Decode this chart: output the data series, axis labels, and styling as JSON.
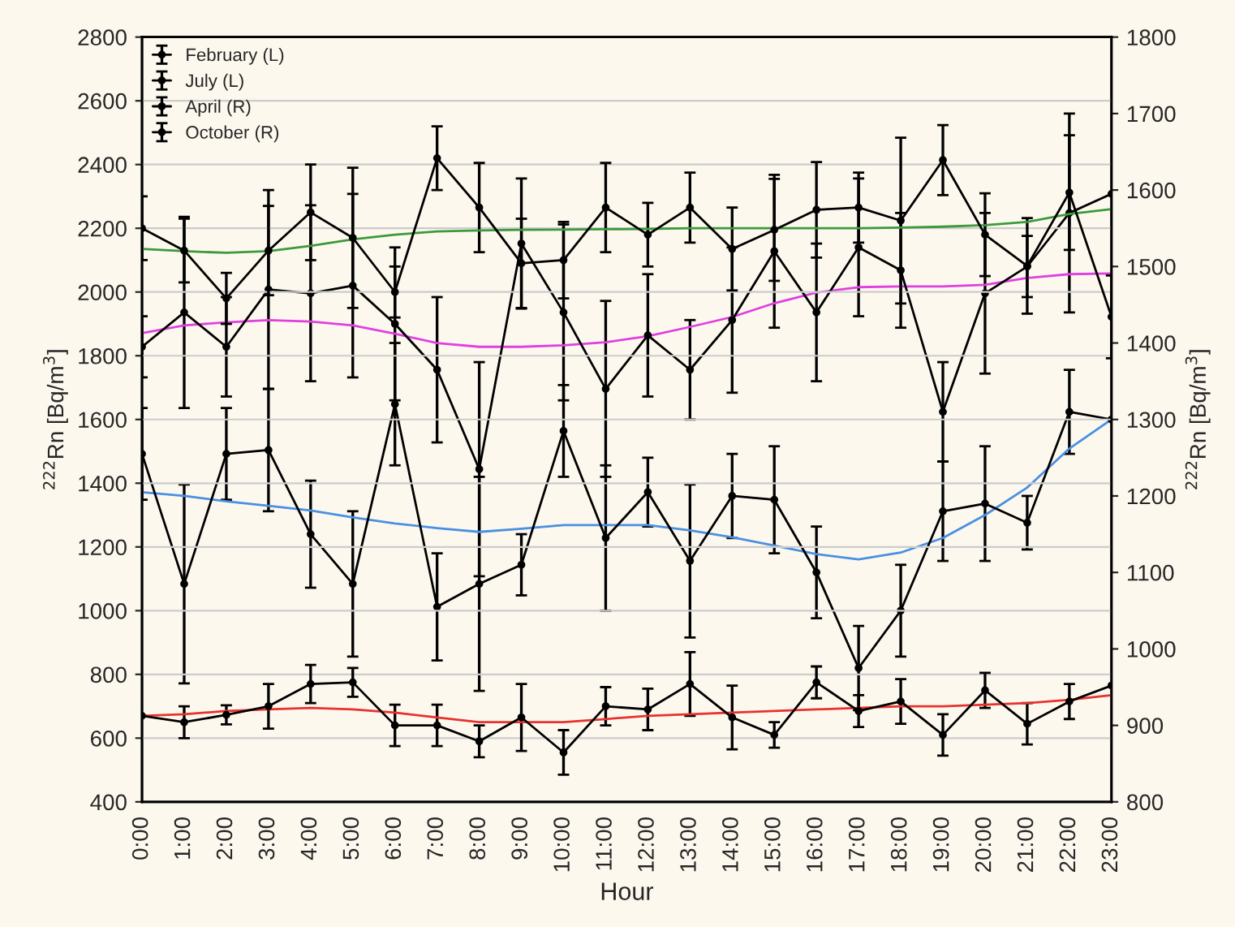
{
  "chart_data": {
    "type": "line",
    "xlabel": "Hour",
    "ylabel": "$^{222}$Rn [Bq/m$^{3}$]",
    "y2label": "$^{222}$Rn [Bq/m$^{3}$]",
    "categories": [
      "0:00",
      "1:00",
      "2:00",
      "3:00",
      "4:00",
      "5:00",
      "6:00",
      "7:00",
      "8:00",
      "9:00",
      "10:00",
      "11:00",
      "12:00",
      "13:00",
      "14:00",
      "15:00",
      "16:00",
      "17:00",
      "18:00",
      "19:00",
      "20:00",
      "21:00",
      "22:00",
      "23:00"
    ],
    "ylim": [
      400,
      2800
    ],
    "yticks": [
      400,
      600,
      800,
      1000,
      1200,
      1400,
      1600,
      1800,
      2000,
      2200,
      2400,
      2600,
      2800
    ],
    "y2lim": [
      800,
      1800
    ],
    "y2ticks": [
      800,
      900,
      1000,
      1100,
      1200,
      1300,
      1400,
      1500,
      1600,
      1700,
      1800
    ],
    "grid": "y",
    "legend": "top left",
    "marker": "circle",
    "line_style": "solid",
    "series": [
      {
        "name": "February (L)",
        "color": "#000000",
        "values": [
          670,
          650,
          673,
          700,
          770,
          775,
          640,
          640,
          590,
          665,
          555,
          700,
          690,
          770,
          665,
          610,
          775,
          685,
          715,
          610,
          750,
          645,
          715,
          765
        ],
        "errors": [
          null,
          50,
          30,
          70,
          60,
          45,
          65,
          65,
          50,
          105,
          70,
          60,
          65,
          100,
          100,
          40,
          50,
          50,
          70,
          65,
          55,
          65,
          55,
          null
        ]
      },
      {
        "name": "July (L)",
        "color": "#000000",
        "values": [
          2200,
          2130,
          1980,
          2130,
          2250,
          2170,
          2000,
          2420,
          2265,
          2090,
          2100,
          2265,
          2180,
          2265,
          2135,
          2195,
          2258,
          2265,
          2224,
          2414,
          2180,
          2082,
          2312,
          1922
        ],
        "errors": [
          100,
          100,
          80,
          140,
          150,
          220,
          80,
          100,
          140,
          140,
          120,
          140,
          100,
          110,
          130,
          160,
          150,
          110,
          260,
          110,
          130,
          150,
          180,
          130
        ]
      },
      {
        "name": "April (R)",
        "color": "#000000",
        "axis": "y2",
        "values": [
          1255,
          1085,
          1255,
          1260,
          1150,
          1085,
          1320,
          1055,
          1085,
          1110,
          1285,
          1145,
          1205,
          1115,
          1200,
          1195,
          1100,
          975,
          1050,
          1180,
          1190,
          1165,
          1310,
          1300
        ],
        "errors": [
          60,
          130,
          60,
          80,
          70,
          95,
          80,
          70,
          140,
          40,
          60,
          95,
          45,
          100,
          55,
          70,
          60,
          55,
          60,
          65,
          75,
          35,
          55,
          null
        ]
      },
      {
        "name": "October (R)",
        "color": "#000000",
        "axis": "y2",
        "values": [
          1395,
          1440,
          1395,
          1470,
          1465,
          1475,
          1425,
          1365,
          1235,
          1530,
          1440,
          1340,
          1410,
          1365,
          1430,
          1520,
          1440,
          1525,
          1495,
          1310,
          1465,
          1500,
          1570,
          1595
        ],
        "errors": [
          40,
          125,
          65,
          130,
          115,
          120,
          100,
          95,
          140,
          85,
          115,
          115,
          80,
          65,
          95,
          100,
          90,
          90,
          75,
          65,
          105,
          40,
          130,
          null
        ]
      },
      {
        "color": "#e8322d",
        "marker": "none",
        "values": [
          670,
          675,
          685,
          690,
          695,
          690,
          680,
          665,
          650,
          650,
          650,
          660,
          670,
          675,
          680,
          685,
          690,
          695,
          700,
          700,
          705,
          710,
          720,
          735
        ]
      },
      {
        "color": "#3c9a3c",
        "marker": "none",
        "values": [
          2135,
          2128,
          2123,
          2128,
          2145,
          2165,
          2180,
          2190,
          2193,
          2195,
          2196,
          2197,
          2198,
          2200,
          2200,
          2200,
          2200,
          2200,
          2202,
          2205,
          2210,
          2220,
          2245,
          2260
        ]
      },
      {
        "color": "#4a90e2",
        "marker": "none",
        "axis": "y2",
        "values": [
          1205,
          1200,
          1193,
          1187,
          1181,
          1172,
          1164,
          1158,
          1153,
          1157,
          1162,
          1162,
          1162,
          1155,
          1146,
          1135,
          1124,
          1117,
          1126,
          1145,
          1175,
          1211,
          1262,
          1300
        ]
      },
      {
        "color": "#e040e0",
        "marker": "none",
        "axis": "y2",
        "values": [
          1413,
          1423,
          1427,
          1430,
          1428,
          1423,
          1412,
          1400,
          1395,
          1395,
          1397,
          1401,
          1409,
          1421,
          1434,
          1452,
          1466,
          1473,
          1474,
          1474,
          1476,
          1485,
          1490,
          1491
        ]
      }
    ]
  }
}
